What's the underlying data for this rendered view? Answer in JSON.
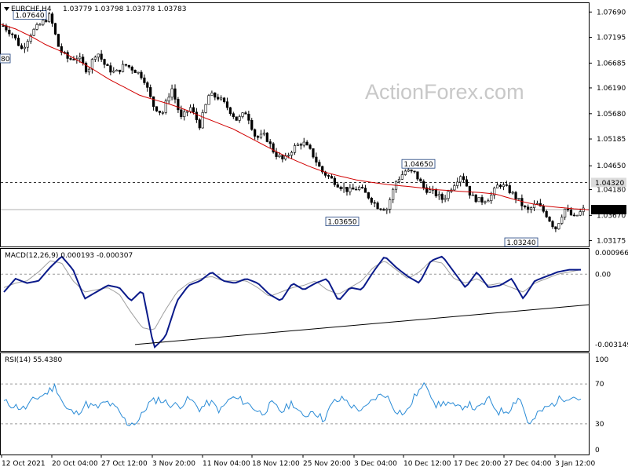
{
  "watermark": "ActionForex.com",
  "chart_data": [
    {
      "type": "candlestick",
      "symbol": "EURCHF,H4",
      "ohlc_readout": [
        "1.03779",
        "1.03798",
        "1.03778",
        "1.03783"
      ],
      "x_tick_labels": [
        "12 Oct 2021",
        "20 Oct 04:00",
        "27 Oct 12:00",
        "3 Nov 20:00",
        "11 Nov 04:00",
        "18 Nov 12:00",
        "25 Nov 20:00",
        "3 Dec 04:00",
        "10 Dec 12:00",
        "17 Dec 20:00",
        "27 Dec 04:00",
        "3 Jan 12:00"
      ],
      "y_ticks": [
        1.0769,
        1.0719,
        1.0668,
        1.0619,
        1.0568,
        1.0518,
        1.0465,
        1.0418,
        1.0367,
        1.0317
      ],
      "y_tick_labels": [
        "1.07690",
        "1.07195",
        "1.06685",
        "1.06190",
        "1.05680",
        "1.05185",
        "1.04650",
        "1.04180",
        "1.03670",
        "1.03175"
      ],
      "ylim": [
        1.0307,
        1.0785
      ],
      "current_price": 1.03783,
      "current_price_label": "1.03783",
      "horizontal_line": 1.0432,
      "horizontal_line_label": "1.04320",
      "annotations": [
        {
          "label": "1.07640",
          "value": 1.0764
        },
        {
          "label": "1.04650",
          "value": 1.0465
        },
        {
          "label": "1.03650",
          "value": 1.0365
        },
        {
          "label": "1.03240",
          "value": 1.0324
        }
      ],
      "left_edge_label": "80",
      "close_path": [
        1.0742,
        1.0725,
        1.0695,
        1.0728,
        1.0745,
        1.0762,
        1.0695,
        1.0675,
        1.068,
        1.0652,
        1.0692,
        1.066,
        1.0648,
        1.0665,
        1.0655,
        1.064,
        1.0585,
        1.0568,
        1.062,
        1.0558,
        1.058,
        1.0545,
        1.0605,
        1.06,
        1.058,
        1.0555,
        1.0572,
        1.052,
        1.0525,
        1.049,
        1.0475,
        1.05,
        1.0512,
        1.049,
        1.0455,
        1.044,
        1.0425,
        1.0415,
        1.0422,
        1.0405,
        1.0385,
        1.038,
        1.0435,
        1.0455,
        1.045,
        1.042,
        1.0412,
        1.0398,
        1.0425,
        1.045,
        1.0405,
        1.0395,
        1.0402,
        1.043,
        1.0418,
        1.0398,
        1.0375,
        1.039,
        1.037,
        1.034,
        1.038,
        1.0362,
        1.0378
      ],
      "ma_path": [
        1.0745,
        1.0735,
        1.072,
        1.0703,
        1.069,
        1.0673,
        1.0655,
        1.0636,
        1.062,
        1.0604,
        1.0595,
        1.0586,
        1.0575,
        1.0562,
        1.055,
        1.0538,
        1.0522,
        1.0506,
        1.049,
        1.0476,
        1.0463,
        1.0452,
        1.0444,
        1.0437,
        1.0432,
        1.0428,
        1.0425,
        1.0422,
        1.0418,
        1.0416,
        1.0414,
        1.0412,
        1.0409,
        1.04,
        1.0392,
        1.0386,
        1.0383,
        1.038,
        1.0378
      ]
    },
    {
      "type": "line",
      "title": "MACD(12,26,9) 0.000193 -0.000307",
      "y_tick_labels": [
        "0.000966",
        "0.00",
        "-0.003149"
      ],
      "y_ticks": [
        0.000966,
        0.0,
        -0.003149
      ],
      "ylim": [
        -0.0034,
        0.0011
      ],
      "zero_line": 0.0,
      "macd_path": [
        -0.0008,
        -0.0002,
        -0.0004,
        -0.0003,
        0.0003,
        0.0008,
        0.0002,
        -0.0011,
        -0.0008,
        -0.0005,
        -0.0006,
        -0.0012,
        -0.0007,
        -0.0033,
        -0.0028,
        -0.0012,
        -0.0005,
        -0.0003,
        0.0001,
        -0.0003,
        -0.0004,
        -0.0002,
        -0.0004,
        -0.0009,
        -0.0012,
        -0.0004,
        -0.0007,
        -0.0004,
        -0.0002,
        -0.0012,
        -0.0006,
        -0.0007,
        0.0001,
        0.0008,
        0.0003,
        -0.0001,
        -0.0004,
        0.0006,
        0.0008,
        0.0001,
        -0.0006,
        0.0001,
        -0.0006,
        -0.0005,
        -0.0002,
        -0.0011,
        -0.0003,
        -0.0001,
        0.0001,
        0.0002,
        0.0002
      ],
      "signal_path": [
        -0.0006,
        -0.0004,
        -0.0003,
        0.0001,
        0.0006,
        0.0005,
        -0.0003,
        -0.0008,
        -0.0007,
        -0.0006,
        -0.0009,
        -0.0017,
        -0.0024,
        -0.0025,
        -0.0016,
        -0.0008,
        -0.0004,
        -0.0002,
        -0.0001,
        -0.0003,
        -0.0003,
        -0.0003,
        -0.0006,
        -0.001,
        -0.0008,
        -0.0006,
        -0.0005,
        -0.0003,
        -0.0007,
        -0.0009,
        -0.0006,
        -0.0003,
        0.0003,
        0.0006,
        0.0002,
        -0.0002,
        0.0001,
        0.0006,
        0.0005,
        -0.0002,
        -0.0004,
        -0.0002,
        -0.0005,
        -0.0004,
        -0.0006,
        -0.0008,
        -0.0004,
        -0.0002,
        0.0,
        0.0001,
        0.0002
      ],
      "trendline": [
        -0.00315,
        -0.00137
      ]
    },
    {
      "type": "line",
      "title": "RSI(14) 55.4380",
      "y_tick_labels": [
        "100",
        "70",
        "30",
        "0"
      ],
      "y_ticks": [
        100,
        70,
        30,
        0
      ],
      "ylim": [
        0,
        100
      ],
      "levels": [
        70,
        30
      ],
      "rsi_path": [
        52,
        48,
        45,
        55,
        60,
        68,
        45,
        40,
        50,
        46,
        52,
        44,
        30,
        32,
        50,
        55,
        50,
        48,
        55,
        45,
        52,
        43,
        56,
        54,
        48,
        40,
        50,
        42,
        52,
        36,
        44,
        34,
        52,
        55,
        46,
        44,
        56,
        60,
        44,
        40,
        60,
        70,
        48,
        52,
        45,
        50,
        44,
        55,
        42,
        44,
        58,
        28,
        42,
        48,
        55,
        58,
        55
      ]
    }
  ]
}
